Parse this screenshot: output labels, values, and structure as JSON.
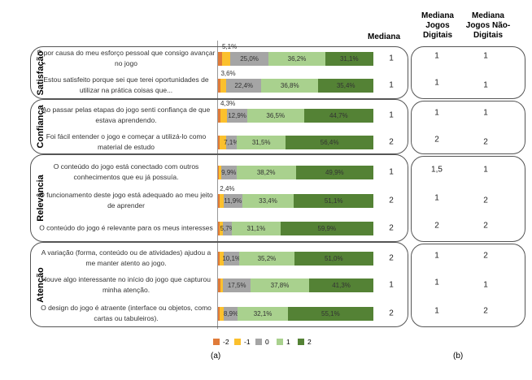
{
  "chart_data": {
    "type": "bar",
    "orientation": "horizontal-stacked-100",
    "legend": {
      "position": "bottom",
      "entries": [
        "-2",
        "-1",
        "0",
        "1",
        "2"
      ]
    },
    "colors": {
      "-2": "#e07b39",
      "-1": "#fbc02d",
      "0": "#a5a5a5",
      "1": "#a9d18e",
      "2": "#548235"
    },
    "headers": {
      "mediana": "Mediana",
      "mediana_digitais": "Mediana Jogos Digitais",
      "mediana_nao_digitais": "Mediana Jogos Não-Digitais"
    },
    "captions": {
      "a": "(a)",
      "b": "(b)"
    },
    "groups": [
      {
        "name": "Satisfação",
        "rows": [
          {
            "label": "É por causa do meu esforço pessoal que consigo avançar no jogo",
            "values": [
              2.6,
              5.1,
              25.0,
              36.2,
              31.1
            ],
            "labels": [
              "",
              "5,1%",
              "25,0%",
              "36,2%",
              "31,1%"
            ],
            "mediana": "1",
            "dig": "1",
            "naodig": "1"
          },
          {
            "label": "Estou satisfeito porque sei que terei oportunidades de utilizar na prática coisas que...",
            "values": [
              1.8,
              3.6,
              22.4,
              36.8,
              35.4
            ],
            "labels": [
              "",
              "3,6%",
              "22,4%",
              "36,8%",
              "35,4%"
            ],
            "mediana": "1",
            "dig": "1",
            "naodig": "1"
          }
        ]
      },
      {
        "name": "Confiança",
        "rows": [
          {
            "label": "Ao passar pelas etapas do jogo senti confiança de que estava aprendendo.",
            "values": [
              1.6,
              4.3,
              12.9,
              36.5,
              44.7
            ],
            "labels": [
              "",
              "4,3%",
              "12,9%",
              "36,5%",
              "44,7%"
            ],
            "mediana": "1",
            "dig": "1",
            "naodig": "1"
          },
          {
            "label": "Foi fácil entender o jogo e começar a utilizá-lo como material de estudo",
            "values": [
              1.0,
              4.0,
              7.1,
              31.5,
              56.4
            ],
            "labels": [
              "",
              "",
              "7,1%",
              "31,5%",
              "56,4%"
            ],
            "mediana": "2",
            "dig": "2",
            "naodig": "2"
          }
        ]
      },
      {
        "name": "Relevância",
        "rows": [
          {
            "label": "O conteúdo do jogo está conectado com outros conhecimentos que eu já possuía.",
            "values": [
              0.5,
              1.5,
              9.9,
              38.2,
              49.9
            ],
            "labels": [
              "",
              "",
              "9,9%",
              "38,2%",
              "49,9%"
            ],
            "mediana": "1",
            "dig": "1,5",
            "naodig": "1"
          },
          {
            "label": "O funcionamento deste jogo está adequado ao meu jeito de aprender",
            "values": [
              1.2,
              2.4,
              11.9,
              33.4,
              51.1
            ],
            "labels": [
              "",
              "2,4%",
              "11,9%",
              "33,4%",
              "51,1%"
            ],
            "mediana": "2",
            "dig": "1",
            "naodig": "2"
          },
          {
            "label": "O conteúdo do jogo é relevante para os meus interesses",
            "values": [
              1.3,
              2.0,
              5.7,
              31.1,
              59.9
            ],
            "labels": [
              "",
              "",
              "5,7%",
              "31,1%",
              "59,9%"
            ],
            "mediana": "2",
            "dig": "2",
            "naodig": "2"
          }
        ]
      },
      {
        "name": "Atenção",
        "rows": [
          {
            "label": "A variação (forma, conteúdo ou de atividades) ajudou a me manter atento ao jogo.",
            "values": [
              1.0,
              2.7,
              10.1,
              35.2,
              51.0
            ],
            "labels": [
              "",
              "",
              "10,1%",
              "35,2%",
              "51,0%"
            ],
            "mediana": "2",
            "dig": "1",
            "naodig": "2"
          },
          {
            "label": "Houve algo interessante no início do jogo que capturou minha atenção.",
            "values": [
              1.5,
              1.9,
              17.5,
              37.8,
              41.3
            ],
            "labels": [
              "",
              "",
              "17,5%",
              "37,8%",
              "41,3%"
            ],
            "mediana": "1",
            "dig": "1",
            "naodig": "1"
          },
          {
            "label": "O design do jogo é atraente (interface ou objetos, como cartas ou tabuleiros).",
            "values": [
              1.2,
              2.7,
              8.9,
              32.1,
              55.1
            ],
            "labels": [
              "",
              "",
              "8,9%",
              "32,1%",
              "55,1%"
            ],
            "mediana": "2",
            "dig": "1",
            "naodig": "2"
          }
        ]
      }
    ]
  }
}
